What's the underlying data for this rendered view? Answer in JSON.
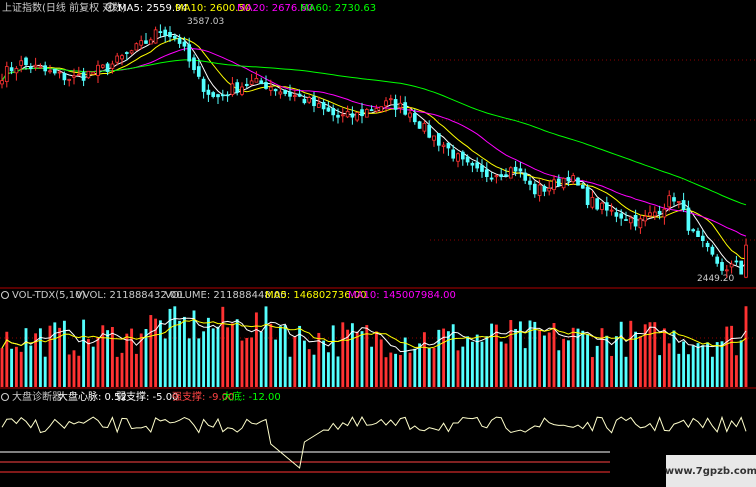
{
  "colors": {
    "background": "#000000",
    "up": "#ff3232",
    "down": "#54ffff",
    "separator": "#b00000",
    "dotted_grid": "#8b0000",
    "ma5": "#ffffff",
    "ma10": "#ffff00",
    "ma20": "#ff00ff",
    "ma60": "#00ff00",
    "text": "#cccccc",
    "diag_line": "#ffffcc",
    "label_weak": "#ffffff",
    "label_strong": "#ff4444",
    "label_bottom": "#00ff00"
  },
  "main_header": {
    "title": "上证指数(日线 前复权 对数)",
    "ma5": "MA5: 2559.94",
    "ma10": "MA10: 2600.50",
    "ma20": "MA20: 2676.60",
    "ma60": "MA60: 2730.63"
  },
  "vol_header": {
    "name": "VOL-TDX(5,10)",
    "vvol": "VVOL: 211888432.00",
    "volume": "VOLUME: 211888448.00",
    "ma5": "MA5: 146802736.00",
    "ma10": "MA10: 145007984.00"
  },
  "diag_header": {
    "name": "大盘诊断器",
    "pulse": "大盘心脉: 0.52",
    "weak": "弱支撑: -5.00",
    "strong": "强支撑: -9.00",
    "bottom": "大底: -12.00"
  },
  "watermark": "www.7gpzb.com",
  "icons": {
    "settings": "gear-icon"
  },
  "chart_data": [
    {
      "type": "candlestick",
      "title": "上证指数(日线 前复权 对数)",
      "annotations": [
        "3587.03",
        "2449.20"
      ],
      "high_label": "3587.03",
      "low_label": "2449.20",
      "approx_close_path": [
        3320,
        3380,
        3350,
        3320,
        3300,
        3330,
        3360,
        3420,
        3480,
        3560,
        3500,
        3300,
        3200,
        3250,
        3280,
        3270,
        3230,
        3200,
        3150,
        3110,
        3120,
        3160,
        3180,
        3140,
        3040,
        2980,
        2900,
        2850,
        2860,
        2880,
        2780,
        2800,
        2850,
        2750,
        2700,
        2680,
        2650,
        2700,
        2760,
        2600,
        2520,
        2449.2,
        2560
      ],
      "ma_legend": [
        "MA5: 2559.94",
        "MA10: 2600.50",
        "MA20: 2676.60",
        "MA60: 2730.63"
      ]
    },
    {
      "type": "bar",
      "title": "VOL-TDX(5,10)",
      "values_note": "volume bars, alternating up/down colors",
      "legend": [
        "VVOL: 211888432.00",
        "VOLUME: 211888448.00",
        "MA5: 146802736.00",
        "MA10: 145007984.00"
      ]
    },
    {
      "type": "line",
      "title": "大盘诊断器",
      "legend": [
        "大盘心脉: 0.52",
        "弱支撑: -5.00",
        "强支撑: -9.00",
        "大底: -12.00"
      ],
      "reference_levels": [
        -5,
        -9,
        -12
      ]
    }
  ]
}
